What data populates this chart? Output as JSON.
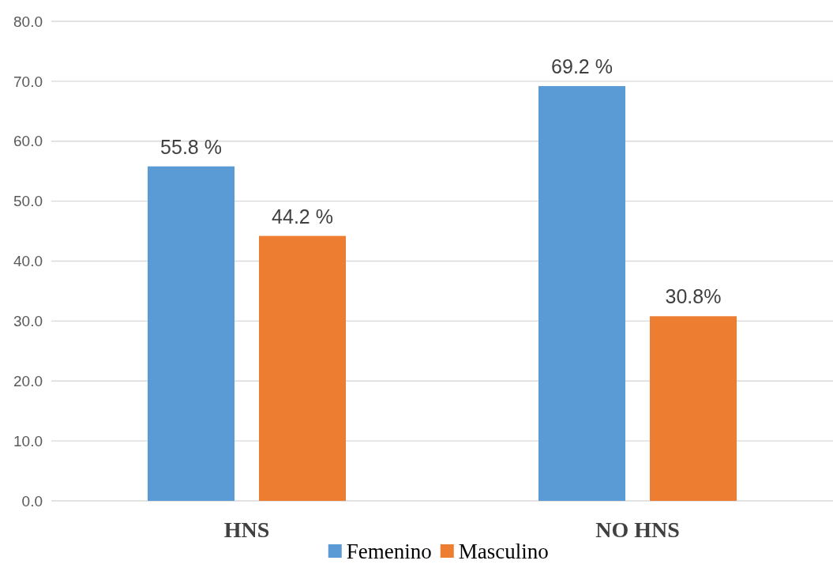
{
  "chart_data": {
    "type": "bar",
    "categories": [
      "HNS",
      "NO HNS"
    ],
    "series": [
      {
        "name": "Femenino",
        "color": "#5b9bd5",
        "values": [
          55.8,
          69.2
        ],
        "value_labels": [
          "55.8 %",
          "69.2 %"
        ]
      },
      {
        "name": "Masculino",
        "color": "#ed7d31",
        "values": [
          44.2,
          30.8
        ],
        "value_labels": [
          "44.2 %",
          "30.8%"
        ]
      }
    ],
    "ylim": [
      0,
      80
    ],
    "yticks": [
      {
        "value": 0,
        "label": "0.0"
      },
      {
        "value": 10,
        "label": "10.0"
      },
      {
        "value": 20,
        "label": "20.0"
      },
      {
        "value": 30,
        "label": "30.0"
      },
      {
        "value": 40,
        "label": "40.0"
      },
      {
        "value": 50,
        "label": "50.0"
      },
      {
        "value": 60,
        "label": "60.0"
      },
      {
        "value": 70,
        "label": "70.0"
      },
      {
        "value": 80,
        "label": "80.0"
      }
    ],
    "grid": "y",
    "legend": "bottom"
  }
}
